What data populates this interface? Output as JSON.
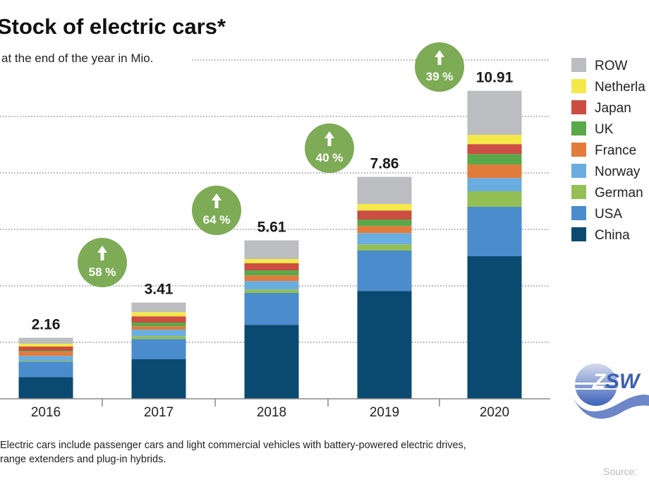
{
  "chart_data": {
    "type": "bar",
    "stacked": true,
    "title": "Stock of electric cars*",
    "subtitle": "at the end of the year in Mio.",
    "categories": [
      "2016",
      "2017",
      "2018",
      "2019",
      "2020"
    ],
    "totals": [
      "2.16",
      "3.41",
      "5.61",
      "7.86",
      "10.91"
    ],
    "growth": [
      "58 %",
      "64 %",
      "40 %",
      "39 %"
    ],
    "ylim": [
      0,
      12
    ],
    "grid": true,
    "grid_step": 2,
    "legend_placement": "right",
    "series": [
      {
        "name": "China",
        "color": "#0b4a70",
        "values": [
          0.77,
          1.4,
          2.62,
          3.82,
          5.05
        ]
      },
      {
        "name": "USA",
        "color": "#4a8ccc",
        "values": [
          0.55,
          0.72,
          1.13,
          1.43,
          1.75
        ]
      },
      {
        "name": "Germany",
        "label": "German",
        "color": "#93bf55",
        "values": [
          0.03,
          0.1,
          0.12,
          0.22,
          0.55
        ]
      },
      {
        "name": "Norway",
        "color": "#6aade0",
        "values": [
          0.17,
          0.23,
          0.3,
          0.4,
          0.47
        ]
      },
      {
        "name": "France",
        "color": "#e07b3c",
        "values": [
          0.15,
          0.12,
          0.2,
          0.25,
          0.48
        ]
      },
      {
        "name": "UK",
        "color": "#5aa84a",
        "values": [
          0.03,
          0.13,
          0.18,
          0.23,
          0.37
        ]
      },
      {
        "name": "Japan",
        "color": "#cc4d42",
        "values": [
          0.15,
          0.22,
          0.25,
          0.32,
          0.35
        ]
      },
      {
        "name": "Netherlands",
        "label": "Netherla",
        "color": "#f5e94a",
        "values": [
          0.1,
          0.15,
          0.15,
          0.23,
          0.33
        ]
      },
      {
        "name": "ROW",
        "color": "#bcbdc0",
        "values": [
          0.21,
          0.34,
          0.66,
          0.96,
          1.56
        ]
      }
    ],
    "growth_badge_color": "#7eab55"
  },
  "footnote": {
    "line1": "Electric cars include passenger cars and light commercial vehicles with battery-powered electric drives,",
    "line2": "range extenders and plug-in hybrids."
  },
  "source": "Source:",
  "logo": {
    "text": "ZSW",
    "icon": "zsw-logo"
  }
}
